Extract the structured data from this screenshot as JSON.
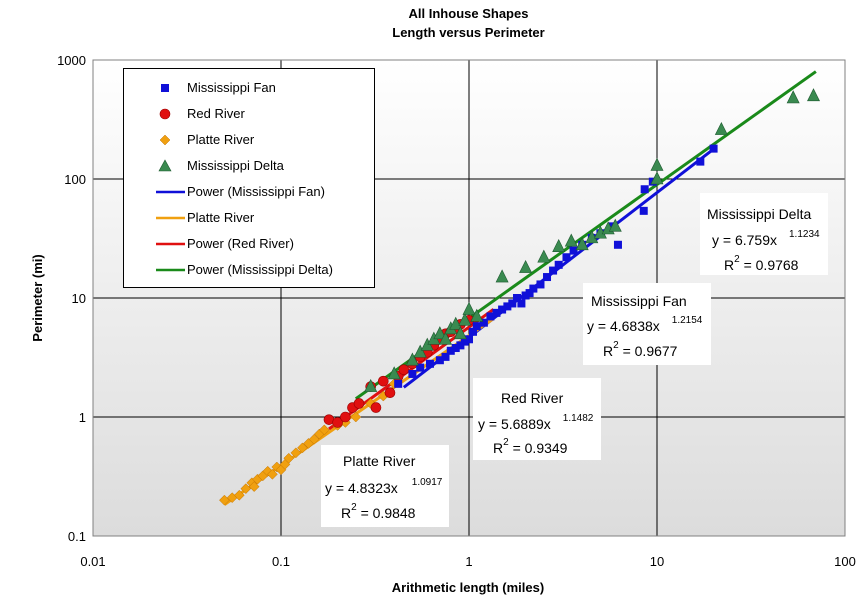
{
  "title": "All Inhouse Shapes",
  "subtitle": "Length versus Perimeter",
  "chart_data": {
    "type": "scatter",
    "title": "All Inhouse Shapes",
    "subtitle": "Length versus Perimeter",
    "xlabel": "Arithmetic length (miles)",
    "ylabel": "Perimeter (mi)",
    "xscale": "log",
    "yscale": "log",
    "xlim": [
      0.01,
      100
    ],
    "ylim": [
      0.1,
      1000
    ],
    "xticks": [
      "0.01",
      "0.1",
      "1",
      "10",
      "100"
    ],
    "yticks": [
      "0.1",
      "1",
      "10",
      "100",
      "1000"
    ],
    "grid": true,
    "legend_position": "top-left",
    "series": [
      {
        "name": "Mississippi Fan",
        "marker": "square",
        "color": "#1010d8",
        "x": [
          0.42,
          0.5,
          0.55,
          0.62,
          0.7,
          0.75,
          0.8,
          0.85,
          0.9,
          0.95,
          1.0,
          1.05,
          1.1,
          1.2,
          1.3,
          1.4,
          1.5,
          1.6,
          1.7,
          1.8,
          1.9,
          2.0,
          2.1,
          2.2,
          2.4,
          2.6,
          2.8,
          3.0,
          3.3,
          3.6,
          4.0,
          4.5,
          5.0,
          5.8,
          6.2,
          8.6,
          8.5,
          9.5,
          17,
          20
        ],
        "y": [
          1.9,
          2.3,
          2.6,
          2.8,
          3.0,
          3.2,
          3.6,
          3.8,
          4.0,
          4.3,
          4.5,
          5.2,
          5.8,
          6.2,
          7.0,
          7.5,
          8.0,
          8.5,
          9.0,
          10.0,
          9.0,
          10.5,
          11.0,
          12.0,
          13.0,
          15.0,
          17.0,
          19.0,
          22.0,
          25.0,
          28.0,
          32.0,
          35.0,
          40.0,
          28.0,
          82.0,
          54.0,
          95.0,
          140.0,
          180.0
        ]
      },
      {
        "name": "Red River",
        "marker": "circle",
        "color": "#e01010",
        "x": [
          0.18,
          0.2,
          0.22,
          0.24,
          0.26,
          0.3,
          0.32,
          0.35,
          0.38,
          0.42,
          0.45,
          0.5,
          0.55,
          0.6,
          0.65,
          0.7,
          0.75,
          0.8,
          0.85,
          0.9,
          1.0
        ],
        "y": [
          0.95,
          0.9,
          1.0,
          1.2,
          1.3,
          1.8,
          1.2,
          2.0,
          1.6,
          2.2,
          2.5,
          2.8,
          3.2,
          3.5,
          4.0,
          4.5,
          5.0,
          5.2,
          5.5,
          6.0,
          6.5
        ]
      },
      {
        "name": "Platte River",
        "marker": "diamond",
        "color": "#f0a010",
        "x": [
          0.05,
          0.055,
          0.06,
          0.065,
          0.07,
          0.072,
          0.075,
          0.08,
          0.085,
          0.09,
          0.095,
          0.1,
          0.105,
          0.11,
          0.12,
          0.13,
          0.14,
          0.15,
          0.16,
          0.17,
          0.2,
          0.22,
          0.25,
          0.3,
          0.35,
          0.4
        ],
        "y": [
          0.2,
          0.21,
          0.22,
          0.25,
          0.28,
          0.26,
          0.3,
          0.32,
          0.35,
          0.33,
          0.38,
          0.36,
          0.4,
          0.45,
          0.5,
          0.55,
          0.6,
          0.65,
          0.72,
          0.78,
          0.85,
          0.9,
          1.0,
          1.3,
          1.5,
          1.9
        ]
      },
      {
        "name": "Mississippi Delta",
        "marker": "triangle",
        "color": "#3a8a50",
        "x": [
          0.3,
          0.4,
          0.5,
          0.55,
          0.6,
          0.65,
          0.7,
          0.75,
          0.8,
          0.85,
          0.9,
          0.95,
          1.0,
          1.1,
          1.5,
          2.0,
          2.5,
          3.0,
          3.5,
          4.0,
          4.5,
          5.0,
          5.5,
          6.0,
          10.0,
          10.0,
          22.0,
          53.0,
          68.0
        ],
        "y": [
          1.8,
          2.3,
          3.0,
          3.5,
          4.0,
          4.5,
          5.0,
          4.5,
          5.5,
          6.0,
          5.0,
          6.5,
          8.0,
          7.0,
          15.0,
          18.0,
          22.0,
          27.0,
          30.0,
          28.0,
          32.0,
          35.0,
          38.0,
          40.0,
          100.0,
          130.0,
          260.0,
          480.0,
          500.0
        ]
      }
    ],
    "trendlines": [
      {
        "name": "Power (Mississippi Fan)",
        "color": "#1010d8",
        "a": 4.6838,
        "b": 1.2154,
        "r2": 0.9677,
        "x_range": [
          0.45,
          20
        ]
      },
      {
        "name": "Platte River",
        "color": "#f0a010",
        "a": 4.8323,
        "b": 1.0917,
        "r2": 0.9848,
        "x_range": [
          0.05,
          1.35
        ]
      },
      {
        "name": "Power (Red River)",
        "color": "#e01010",
        "a": 5.6889,
        "b": 1.1482,
        "r2": 0.9349,
        "x_range": [
          0.18,
          1.35
        ]
      },
      {
        "name": "Power (Mississippi Delta)",
        "color": "#1a8a1a",
        "a": 6.759,
        "b": 1.1234,
        "r2": 0.9768,
        "x_range": [
          0.25,
          70
        ]
      }
    ],
    "annotations": [
      {
        "name": "Platte River",
        "equation": "y = 4.8323x",
        "exponent": "1.0917",
        "r2_prefix": "R",
        "r2_sup": "2",
        "r2_value": " = 0.9848"
      },
      {
        "name": "Red River",
        "equation": "y = 5.6889x",
        "exponent": "1.1482",
        "r2_prefix": "R",
        "r2_sup": "2",
        "r2_value": " = 0.9349"
      },
      {
        "name": "Mississippi Fan",
        "equation": "y = 4.6838x",
        "exponent": "1.2154",
        "r2_prefix": "R",
        "r2_sup": "2",
        "r2_value": " = 0.9677"
      },
      {
        "name": "Mississippi Delta",
        "equation": "y = 6.759x",
        "exponent": "1.1234",
        "r2_prefix": "R",
        "r2_sup": "2",
        "r2_value": " = 0.9768"
      }
    ],
    "legend": [
      {
        "label": "Mississippi Fan",
        "symbol": "square",
        "color": "#1010d8"
      },
      {
        "label": "Red River",
        "symbol": "circle",
        "color": "#e01010"
      },
      {
        "label": "Platte River",
        "symbol": "diamond",
        "color": "#f0a010"
      },
      {
        "label": "Mississippi Delta",
        "symbol": "triangle",
        "color": "#3a8a50"
      },
      {
        "label": "Power (Mississippi Fan)",
        "symbol": "line",
        "color": "#1010d8"
      },
      {
        "label": "Platte River",
        "symbol": "line",
        "color": "#f0a010"
      },
      {
        "label": "Power (Red River)",
        "symbol": "line",
        "color": "#e01010"
      },
      {
        "label": "Power (Mississippi Delta)",
        "symbol": "line",
        "color": "#1a8a1a"
      }
    ]
  }
}
